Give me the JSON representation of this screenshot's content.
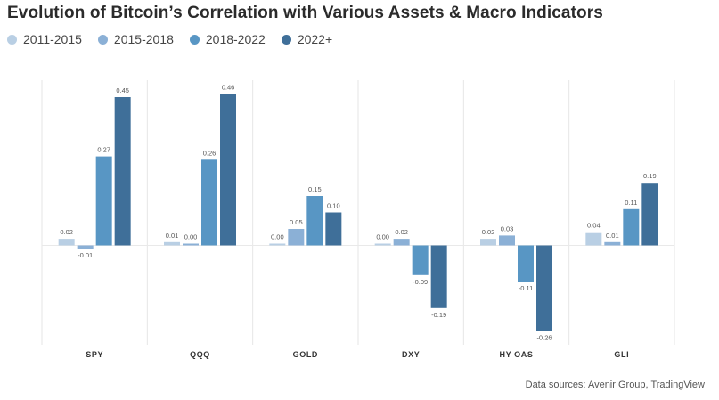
{
  "title": "Evolution of Bitcoin’s Correlation with Various Assets & Macro Indicators",
  "source": "Data sources: Avenir Group, TradingView",
  "chart_data": {
    "type": "bar",
    "categories": [
      "SPY",
      "QQQ",
      "GOLD",
      "DXY",
      "HY OAS",
      "GLI"
    ],
    "series": [
      {
        "name": "2011-2015",
        "color": "#b9cfe4",
        "values": [
          0.02,
          0.01,
          0.0,
          0.0,
          0.02,
          0.04
        ],
        "labels": [
          "0.02",
          "0.01",
          "0.00",
          "0.00",
          "0.02",
          "0.04"
        ]
      },
      {
        "name": "2015-2018",
        "color": "#8bb0d6",
        "values": [
          -0.01,
          0.0,
          0.05,
          0.02,
          0.03,
          0.01
        ],
        "labels": [
          "-0.01",
          "0.00",
          "0.05",
          "0.02",
          "0.03",
          "0.01"
        ]
      },
      {
        "name": "2018-2022",
        "color": "#5896c4",
        "values": [
          0.27,
          0.26,
          0.15,
          -0.09,
          -0.11,
          0.11
        ],
        "labels": [
          "0.27",
          "0.26",
          "0.15",
          "-0.09",
          "-0.11",
          "0.11"
        ]
      },
      {
        "name": "2022+",
        "color": "#3f6f99",
        "values": [
          0.45,
          0.46,
          0.1,
          -0.19,
          -0.26,
          0.19
        ],
        "labels": [
          "0.45",
          "0.46",
          "0.10",
          "-0.19",
          "-0.26",
          "0.19"
        ]
      }
    ],
    "ylim": [
      -0.3,
      0.5
    ],
    "grid": "vertical separators",
    "legend": "top-left"
  }
}
